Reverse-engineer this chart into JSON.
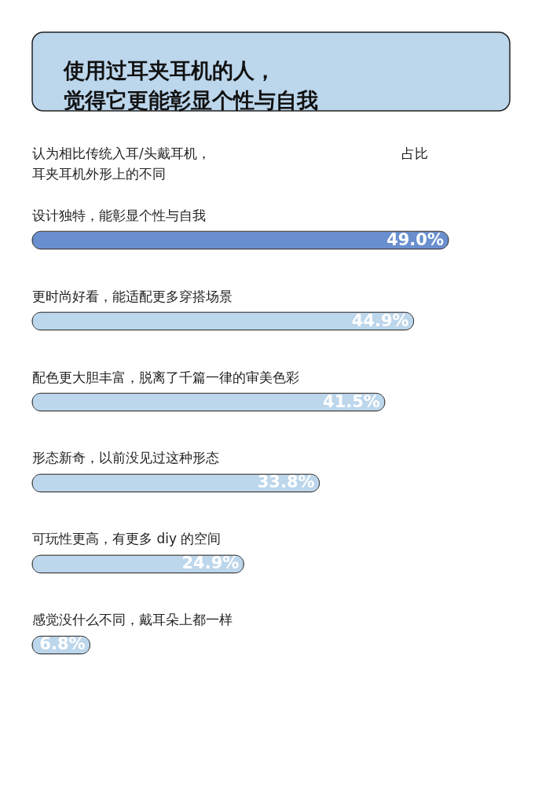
{
  "chart_data": {
    "type": "bar",
    "orientation": "horizontal",
    "title": "使用过耳夹耳机的人，觉得它更能彰显个性与自我",
    "annotations": [
      "认为相比传统入耳/头戴耳机，耳夹耳机外形上的不同",
      "占比"
    ],
    "categories": [
      "设计独特，能彰显个性与自我",
      "更时尚好看，能适配更多穿搭场景",
      "配色更大胆丰富，脱离了千篇一律的审美色彩",
      "形态新奇，以前没见过这种形态",
      "可玩性更高，有更多 diy 的空间",
      "感觉没什么不同，戴耳朵上都一样"
    ],
    "values": [
      49.0,
      44.9,
      41.5,
      33.8,
      24.9,
      6.8
    ],
    "value_labels": [
      "49.0%",
      "44.9%",
      "41.5%",
      "33.8%",
      "24.9%",
      "6.8%"
    ],
    "colors": [
      "#6a8fcf",
      "#bcd6ec",
      "#bcd6ec",
      "#bcd6ec",
      "#bcd6ec",
      "#bcd6ec"
    ]
  }
}
